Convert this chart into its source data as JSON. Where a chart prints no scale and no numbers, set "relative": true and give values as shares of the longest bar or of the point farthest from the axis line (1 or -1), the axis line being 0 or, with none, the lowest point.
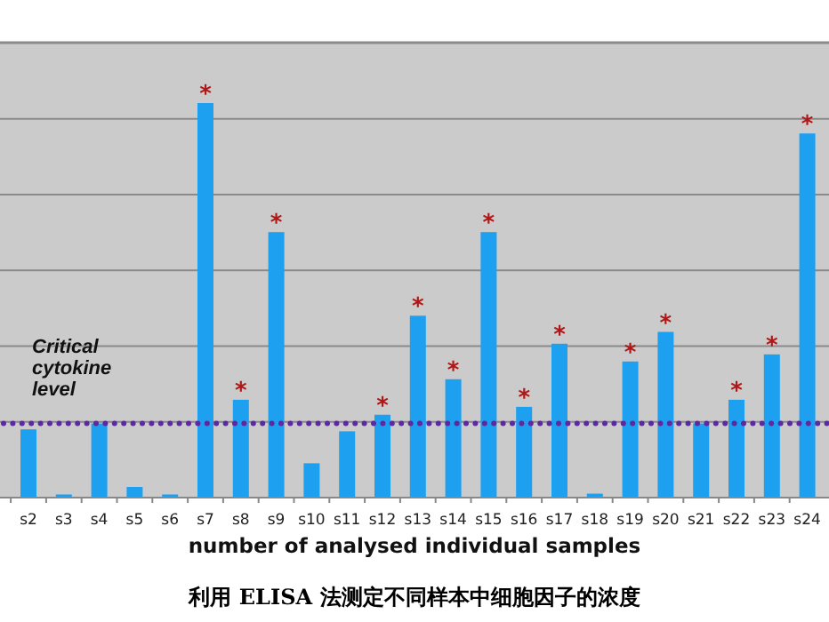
{
  "chart_data": {
    "type": "bar",
    "relative": true,
    "xlabel": "number of analysed individual samples",
    "categories": [
      "s2",
      "s3",
      "s4",
      "s5",
      "s6",
      "s7",
      "s8",
      "s9",
      "s10",
      "s11",
      "s12",
      "s13",
      "s14",
      "s15",
      "s16",
      "s17",
      "s18",
      "s19",
      "s20",
      "s21",
      "s22",
      "s23",
      "s24"
    ],
    "values": [
      0.173,
      0.008,
      0.188,
      0.027,
      0.008,
      1,
      0.248,
      0.673,
      0.087,
      0.168,
      0.21,
      0.461,
      0.3,
      0.673,
      0.23,
      0.39,
      0.01,
      0.345,
      0.42,
      0.188,
      0.248,
      0.363,
      0.923
    ],
    "color": "#1ea0f0",
    "grid": true,
    "ref_lines": [
      {
        "axis": "y",
        "value": 0.188,
        "label": "Critical cytokine level",
        "color": "#5b2a9e",
        "line_style": "dotted"
      }
    ],
    "annotations": [
      {
        "text": "*",
        "x": "s7",
        "y": 1
      },
      {
        "text": "*",
        "x": "s8",
        "y": 0.248
      },
      {
        "text": "*",
        "x": "s9",
        "y": 0.673
      },
      {
        "text": "*",
        "x": "s12",
        "y": 0.21
      },
      {
        "text": "*",
        "x": "s13",
        "y": 0.461
      },
      {
        "text": "*",
        "x": "s14",
        "y": 0.3
      },
      {
        "text": "*",
        "x": "s15",
        "y": 0.673
      },
      {
        "text": "*",
        "x": "s16",
        "y": 0.23
      },
      {
        "text": "*",
        "x": "s17",
        "y": 0.39
      },
      {
        "text": "*",
        "x": "s19",
        "y": 0.345
      },
      {
        "text": "*",
        "x": "s20",
        "y": 0.42
      },
      {
        "text": "*",
        "x": "s22",
        "y": 0.248
      },
      {
        "text": "*",
        "x": "s23",
        "y": 0.363
      },
      {
        "text": "*",
        "x": "s24",
        "y": 0.923
      },
      "利用 ELISA 法测定不同样本中细胞因子的浓度"
    ]
  }
}
